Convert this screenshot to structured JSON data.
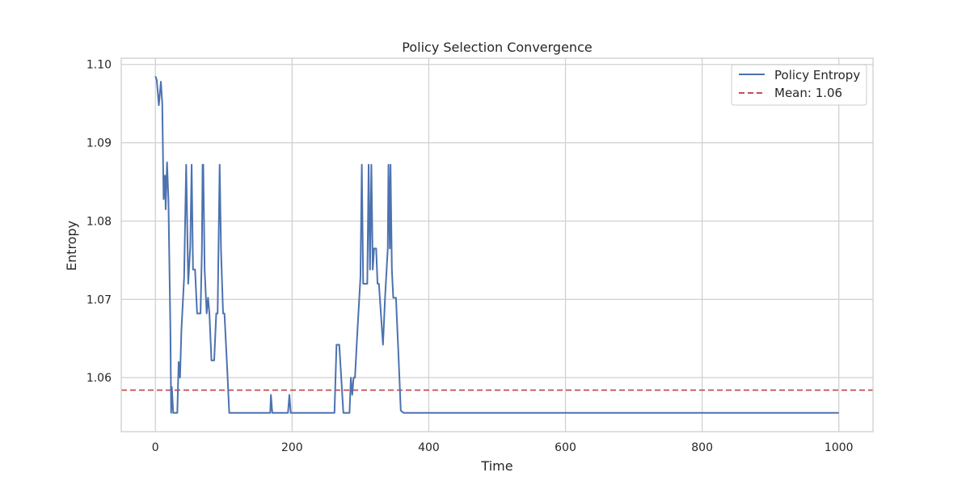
{
  "chart_data": {
    "type": "line",
    "title": "Policy Selection Convergence",
    "xlabel": "Time",
    "ylabel": "Entropy",
    "xlim": [
      -50,
      1050
    ],
    "ylim": [
      1.0531,
      1.1008
    ],
    "xticks": [
      0,
      200,
      400,
      600,
      800,
      1000
    ],
    "xtick_labels": [
      "0",
      "200",
      "400",
      "600",
      "800",
      "1000"
    ],
    "yticks": [
      1.06,
      1.07,
      1.08,
      1.09,
      1.1
    ],
    "ytick_labels": [
      "1.06",
      "1.07",
      "1.08",
      "1.09",
      "1.10"
    ],
    "grid": true,
    "legend_position": "top-right",
    "series": [
      {
        "name": "Policy Entropy",
        "color": "#4c72b0",
        "style": "solid",
        "points": [
          [
            0,
            1.0985
          ],
          [
            2,
            1.098
          ],
          [
            5,
            1.0948
          ],
          [
            8,
            1.0978
          ],
          [
            10,
            1.095
          ],
          [
            12,
            1.0828
          ],
          [
            14,
            1.0858
          ],
          [
            15,
            1.0815
          ],
          [
            17,
            1.0875
          ],
          [
            19,
            1.0828
          ],
          [
            22,
            1.0655
          ],
          [
            23,
            1.0555
          ],
          [
            24,
            1.0588
          ],
          [
            26,
            1.0555
          ],
          [
            32,
            1.0555
          ],
          [
            34,
            1.062
          ],
          [
            36,
            1.06
          ],
          [
            38,
            1.066
          ],
          [
            42,
            1.0728
          ],
          [
            45,
            1.0872
          ],
          [
            48,
            1.072
          ],
          [
            51,
            1.0768
          ],
          [
            53,
            1.0872
          ],
          [
            55,
            1.0738
          ],
          [
            58,
            1.0738
          ],
          [
            61,
            1.0682
          ],
          [
            66,
            1.0682
          ],
          [
            68,
            1.0762
          ],
          [
            69,
            1.0872
          ],
          [
            70,
            1.0872
          ],
          [
            72,
            1.0738
          ],
          [
            75,
            1.0682
          ],
          [
            77,
            1.0702
          ],
          [
            79,
            1.0682
          ],
          [
            82,
            1.0622
          ],
          [
            86,
            1.0622
          ],
          [
            89,
            1.0682
          ],
          [
            91,
            1.0682
          ],
          [
            94,
            1.0872
          ],
          [
            96,
            1.0762
          ],
          [
            99,
            1.0682
          ],
          [
            101,
            1.0682
          ],
          [
            105,
            1.0612
          ],
          [
            108,
            1.0555
          ],
          [
            168,
            1.0555
          ],
          [
            169,
            1.0578
          ],
          [
            171,
            1.0555
          ],
          [
            194,
            1.0555
          ],
          [
            196,
            1.0578
          ],
          [
            198,
            1.0555
          ],
          [
            262,
            1.0555
          ],
          [
            265,
            1.0642
          ],
          [
            269,
            1.0642
          ],
          [
            275,
            1.0555
          ],
          [
            284,
            1.0555
          ],
          [
            286,
            1.06
          ],
          [
            288,
            1.0578
          ],
          [
            290,
            1.06
          ],
          [
            292,
            1.06
          ],
          [
            295,
            1.065
          ],
          [
            300,
            1.0728
          ],
          [
            302,
            1.0872
          ],
          [
            304,
            1.072
          ],
          [
            310,
            1.072
          ],
          [
            312,
            1.0872
          ],
          [
            314,
            1.0738
          ],
          [
            316,
            1.0872
          ],
          [
            318,
            1.0738
          ],
          [
            320,
            1.0765
          ],
          [
            323,
            1.0765
          ],
          [
            325,
            1.072
          ],
          [
            327,
            1.072
          ],
          [
            333,
            1.0642
          ],
          [
            336,
            1.0702
          ],
          [
            340,
            1.0765
          ],
          [
            341,
            1.0872
          ],
          [
            343,
            1.0765
          ],
          [
            344,
            1.0872
          ],
          [
            346,
            1.0738
          ],
          [
            348,
            1.0702
          ],
          [
            352,
            1.0702
          ],
          [
            356,
            1.0622
          ],
          [
            359,
            1.0558
          ],
          [
            363,
            1.0555
          ],
          [
            1000,
            1.0555
          ]
        ]
      },
      {
        "name": "Mean: 1.06",
        "color": "#c44e52",
        "style": "dashed",
        "y": 1.0584
      }
    ]
  }
}
